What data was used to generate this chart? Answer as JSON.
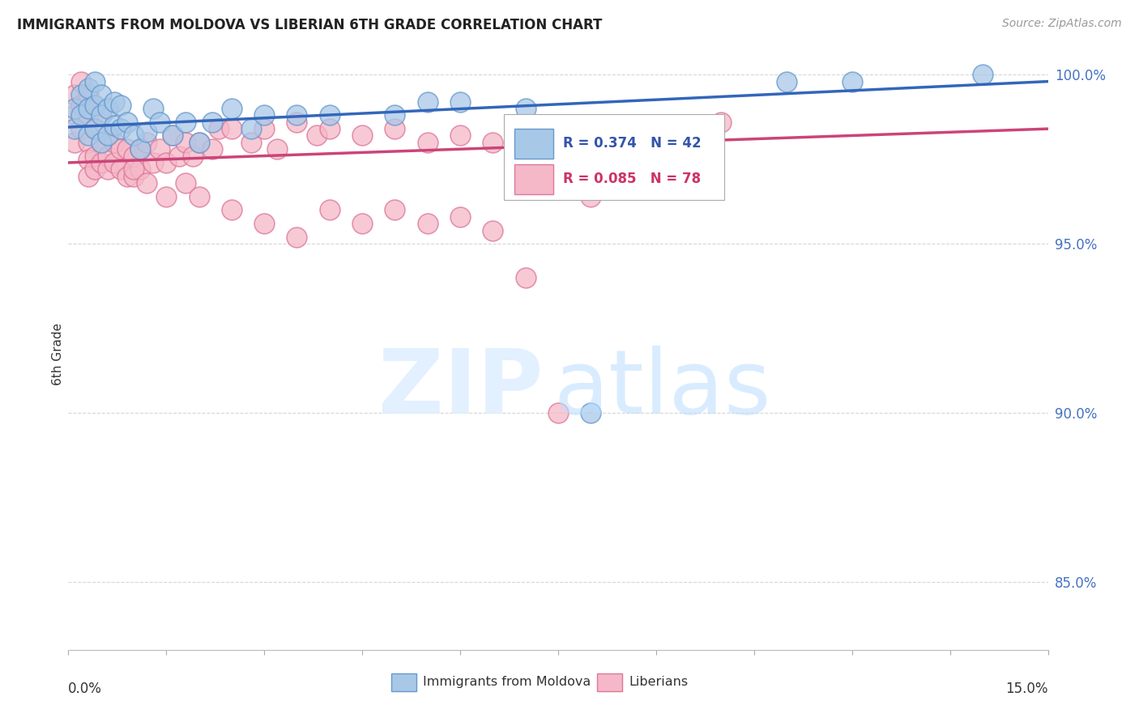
{
  "title": "IMMIGRANTS FROM MOLDOVA VS LIBERIAN 6TH GRADE CORRELATION CHART",
  "source": "Source: ZipAtlas.com",
  "ylabel": "6th Grade",
  "xlim": [
    0.0,
    0.15
  ],
  "ylim": [
    0.83,
    1.005
  ],
  "yticks": [
    0.85,
    0.9,
    0.95,
    1.0
  ],
  "ytick_labels": [
    "85.0%",
    "90.0%",
    "95.0%",
    "100.0%"
  ],
  "grid_color": "#cccccc",
  "background_color": "#ffffff",
  "moldova_color": "#a8c8e8",
  "moldova_edge_color": "#6699cc",
  "liberian_color": "#f5b8c8",
  "liberian_edge_color": "#dd7799",
  "moldova_R": 0.374,
  "moldova_N": 42,
  "liberian_R": 0.085,
  "liberian_N": 78,
  "legend_moldova": "Immigrants from Moldova",
  "legend_liberian": "Liberians",
  "moldova_x": [
    0.001,
    0.001,
    0.002,
    0.002,
    0.003,
    0.003,
    0.003,
    0.004,
    0.004,
    0.004,
    0.005,
    0.005,
    0.005,
    0.006,
    0.006,
    0.007,
    0.007,
    0.008,
    0.008,
    0.009,
    0.01,
    0.011,
    0.012,
    0.013,
    0.014,
    0.016,
    0.018,
    0.02,
    0.022,
    0.025,
    0.028,
    0.03,
    0.035,
    0.04,
    0.05,
    0.055,
    0.06,
    0.07,
    0.08,
    0.11,
    0.12,
    0.14
  ],
  "moldova_y": [
    0.99,
    0.984,
    0.988,
    0.994,
    0.982,
    0.99,
    0.996,
    0.984,
    0.991,
    0.998,
    0.98,
    0.988,
    0.994,
    0.982,
    0.99,
    0.985,
    0.992,
    0.984,
    0.991,
    0.986,
    0.982,
    0.978,
    0.983,
    0.99,
    0.986,
    0.982,
    0.986,
    0.98,
    0.986,
    0.99,
    0.984,
    0.988,
    0.988,
    0.988,
    0.988,
    0.992,
    0.992,
    0.99,
    0.9,
    0.998,
    0.998,
    1.0
  ],
  "liberian_x": [
    0.001,
    0.001,
    0.001,
    0.002,
    0.002,
    0.002,
    0.003,
    0.003,
    0.003,
    0.003,
    0.003,
    0.004,
    0.004,
    0.004,
    0.004,
    0.005,
    0.005,
    0.005,
    0.006,
    0.006,
    0.006,
    0.007,
    0.007,
    0.008,
    0.008,
    0.009,
    0.009,
    0.01,
    0.01,
    0.011,
    0.011,
    0.012,
    0.013,
    0.014,
    0.015,
    0.016,
    0.017,
    0.018,
    0.019,
    0.02,
    0.022,
    0.023,
    0.025,
    0.028,
    0.03,
    0.032,
    0.035,
    0.038,
    0.04,
    0.045,
    0.05,
    0.055,
    0.06,
    0.065,
    0.07,
    0.075,
    0.08,
    0.085,
    0.09,
    0.095,
    0.01,
    0.012,
    0.015,
    0.018,
    0.02,
    0.025,
    0.03,
    0.035,
    0.04,
    0.045,
    0.05,
    0.055,
    0.06,
    0.065,
    0.07,
    0.075,
    0.08,
    0.1
  ],
  "liberian_y": [
    0.988,
    0.994,
    0.98,
    0.984,
    0.991,
    0.998,
    0.98,
    0.988,
    0.994,
    0.975,
    0.97,
    0.984,
    0.991,
    0.976,
    0.972,
    0.98,
    0.988,
    0.974,
    0.982,
    0.976,
    0.972,
    0.98,
    0.974,
    0.978,
    0.972,
    0.978,
    0.97,
    0.976,
    0.97,
    0.978,
    0.972,
    0.98,
    0.974,
    0.978,
    0.974,
    0.982,
    0.976,
    0.98,
    0.976,
    0.98,
    0.978,
    0.984,
    0.984,
    0.98,
    0.984,
    0.978,
    0.986,
    0.982,
    0.984,
    0.982,
    0.984,
    0.98,
    0.982,
    0.98,
    0.984,
    0.982,
    0.98,
    0.984,
    0.98,
    0.984,
    0.972,
    0.968,
    0.964,
    0.968,
    0.964,
    0.96,
    0.956,
    0.952,
    0.96,
    0.956,
    0.96,
    0.956,
    0.958,
    0.954,
    0.94,
    0.9,
    0.964,
    0.986
  ],
  "trend_moldova_x0": 0.0,
  "trend_moldova_x1": 0.15,
  "trend_moldova_y0": 0.9845,
  "trend_moldova_y1": 0.998,
  "trend_liberian_x0": 0.0,
  "trend_liberian_x1": 0.15,
  "trend_liberian_y0": 0.974,
  "trend_liberian_y1": 0.984
}
